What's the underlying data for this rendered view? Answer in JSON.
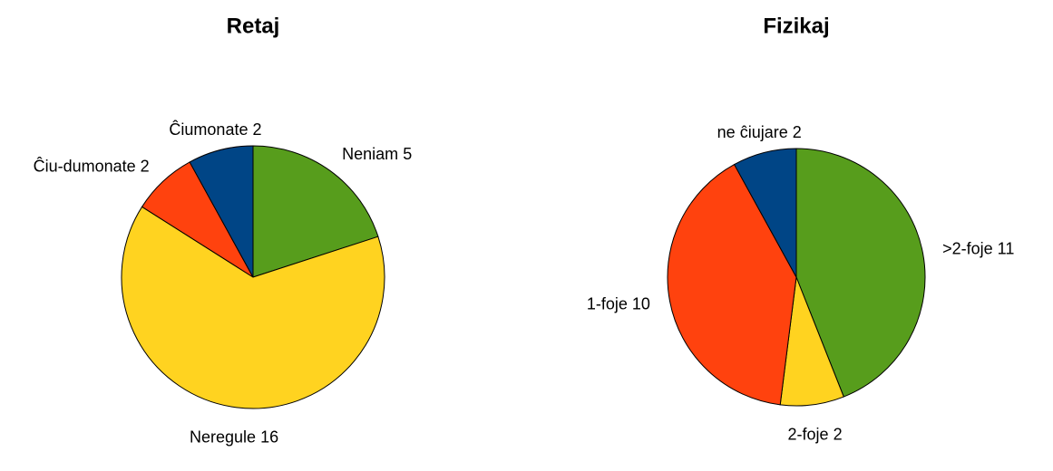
{
  "chart_data": [
    {
      "type": "pie",
      "title": "Retaj",
      "categories": [
        "Neniam",
        "Neregule",
        "Ĉiu-dumonate",
        "Ĉiumonate"
      ],
      "values": [
        5,
        16,
        2,
        2
      ],
      "colors": [
        "#579d1c",
        "#ffd320",
        "#ff420e",
        "#004586"
      ]
    },
    {
      "type": "pie",
      "title": "Fizikaj",
      "categories": [
        ">2-foje",
        "2-foje",
        "1-foje",
        "ne ĉiujare"
      ],
      "values": [
        11,
        2,
        10,
        2
      ],
      "colors": [
        "#579d1c",
        "#ffd320",
        "#ff420e",
        "#004586"
      ]
    }
  ]
}
